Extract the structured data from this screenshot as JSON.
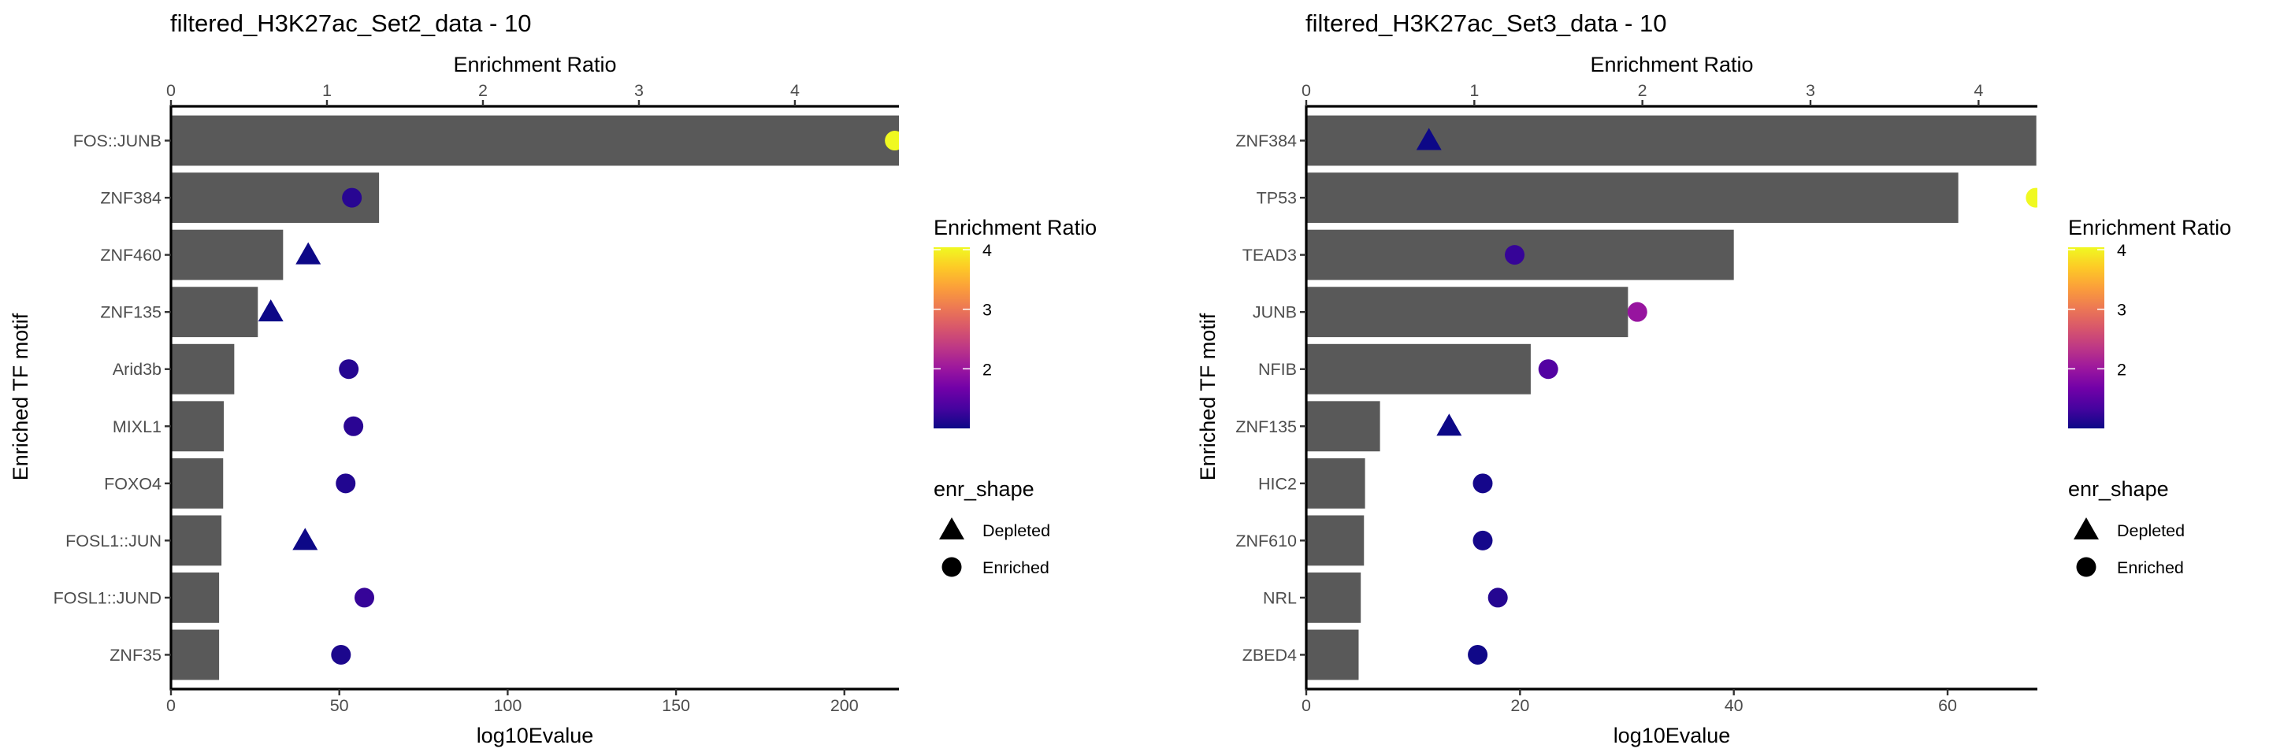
{
  "chart_data": [
    {
      "type": "bar",
      "title": "filtered_H3K27ac_Set2_data - 10",
      "xlabel": "log10Evalue",
      "xlabel_secondary": "Enrichment Ratio",
      "ylabel": "Enriched TF motif",
      "xlim": [
        0,
        216.2
      ],
      "xlim_secondary": [
        0,
        4.667
      ],
      "x_ticks": [
        "0",
        "50",
        "100",
        "150",
        "200"
      ],
      "x_tick_values": [
        0,
        50,
        100,
        150,
        200
      ],
      "x_secondary_ticks": [
        "0",
        "1",
        "2",
        "3",
        "4"
      ],
      "x_secondary_tick_values": [
        0,
        1,
        2,
        3,
        4
      ],
      "grid": false,
      "categories": [
        "FOS::JUNB",
        "ZNF384",
        "ZNF460",
        "ZNF135",
        "Arid3b",
        "MIXL1",
        "FOXO4",
        "FOSL1::JUN",
        "FOSL1::JUND",
        "ZNF35"
      ],
      "series": [
        {
          "name": "log10Evalue",
          "kind": "bar",
          "values": [
            216.2,
            61.8,
            33.3,
            25.8,
            18.8,
            15.7,
            15.5,
            15.0,
            14.3,
            14.3
          ]
        },
        {
          "name": "Enrichment Ratio",
          "kind": "point",
          "values": [
            4.64,
            1.16,
            0.88,
            0.64,
            1.14,
            1.17,
            1.12,
            0.86,
            1.24,
            1.09
          ],
          "enr_shape": [
            "Enriched",
            "Enriched",
            "Depleted",
            "Depleted",
            "Enriched",
            "Enriched",
            "Enriched",
            "Depleted",
            "Enriched",
            "Enriched"
          ]
        }
      ],
      "legend": {
        "position": "right",
        "color_title": "Enrichment Ratio",
        "color_ticks": [
          "2",
          "3",
          "4"
        ],
        "color_tick_values": [
          2,
          3,
          4
        ],
        "color_limits": [
          1.0,
          4.04
        ],
        "shape_title": "enr_shape",
        "shape_items": [
          {
            "label": "Depleted",
            "shape": "triangle"
          },
          {
            "label": "Enriched",
            "shape": "circle"
          }
        ]
      }
    },
    {
      "type": "bar",
      "title": "filtered_H3K27ac_Set3_data - 10",
      "xlabel": "log10Evalue",
      "xlabel_secondary": "Enrichment Ratio",
      "ylabel": "Enriched TF motif",
      "xlim": [
        0,
        68.4
      ],
      "xlim_secondary": [
        0,
        4.35
      ],
      "x_ticks": [
        "0",
        "20",
        "40",
        "60"
      ],
      "x_tick_values": [
        0,
        20,
        40,
        60
      ],
      "x_secondary_ticks": [
        "0",
        "1",
        "2",
        "3",
        "4"
      ],
      "x_secondary_tick_values": [
        0,
        1,
        2,
        3,
        4
      ],
      "grid": false,
      "categories": [
        "ZNF384",
        "TP53",
        "TEAD3",
        "JUNB",
        "NFIB",
        "ZNF135",
        "HIC2",
        "ZNF610",
        "NRL",
        "ZBED4"
      ],
      "series": [
        {
          "name": "log10Evalue",
          "kind": "bar",
          "values": [
            68.3,
            61.0,
            40.0,
            30.1,
            21.0,
            6.9,
            5.5,
            5.4,
            5.1,
            4.9
          ]
        },
        {
          "name": "Enrichment Ratio",
          "kind": "point",
          "values": [
            0.73,
            4.34,
            1.24,
            1.97,
            1.44,
            0.85,
            1.05,
            1.05,
            1.14,
            1.02
          ],
          "enr_shape": [
            "Depleted",
            "Enriched",
            "Enriched",
            "Enriched",
            "Enriched",
            "Depleted",
            "Enriched",
            "Enriched",
            "Enriched",
            "Enriched"
          ]
        }
      ],
      "legend": {
        "position": "right",
        "color_title": "Enrichment Ratio",
        "color_ticks": [
          "2",
          "3",
          "4"
        ],
        "color_tick_values": [
          2,
          3,
          4
        ],
        "color_limits": [
          1.0,
          4.04
        ],
        "shape_title": "enr_shape",
        "shape_items": [
          {
            "label": "Depleted",
            "shape": "triangle"
          },
          {
            "label": "Enriched",
            "shape": "circle"
          }
        ]
      }
    }
  ],
  "colors": {
    "bar": "#595959",
    "plasma": [
      "#0d0887",
      "#46039f",
      "#7201a8",
      "#9c179e",
      "#bd3786",
      "#d8576b",
      "#ed7953",
      "#fb9f3a",
      "#fdca26",
      "#f0f921"
    ]
  }
}
